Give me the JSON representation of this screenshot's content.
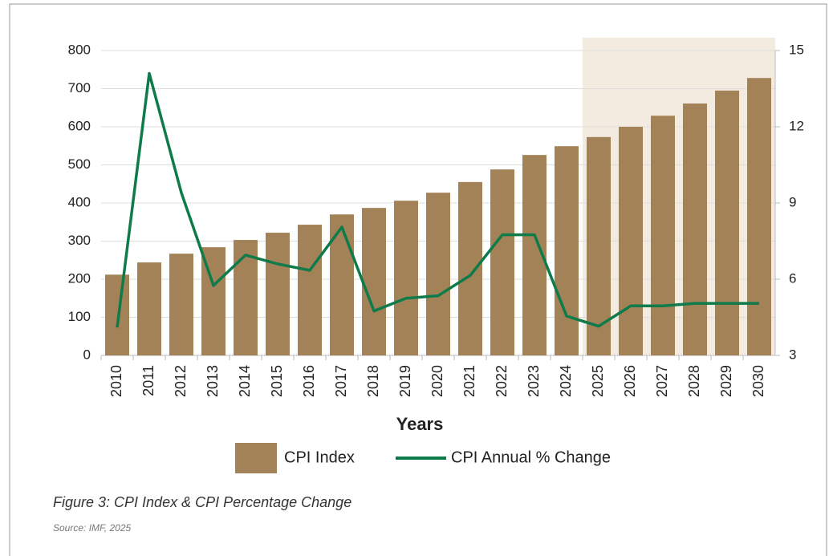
{
  "chart_data": {
    "type": "bar_line",
    "xlabel": "Years",
    "categories": [
      "2010",
      "2011",
      "2012",
      "2013",
      "2014",
      "2015",
      "2016",
      "2017",
      "2018",
      "2019",
      "2020",
      "2021",
      "2022",
      "2023",
      "2024",
      "2025",
      "2026",
      "2027",
      "2028",
      "2029",
      "2030"
    ],
    "series": [
      {
        "name": "CPI Index",
        "type": "bar",
        "color": "#a38258",
        "values": [
          212,
          244,
          267,
          284,
          303,
          322,
          343,
          370,
          387,
          406,
          427,
          455,
          488,
          526,
          549,
          573,
          600,
          629,
          661,
          695,
          728
        ]
      },
      {
        "name": "CPI Annual % Change",
        "type": "line",
        "axis": "y2",
        "color": "#0f7a4a",
        "values": [
          4.1,
          14.1,
          9.4,
          5.75,
          6.95,
          6.6,
          6.35,
          8.05,
          4.75,
          5.25,
          5.35,
          6.15,
          7.75,
          7.75,
          4.55,
          4.15,
          4.95,
          4.95,
          5.05,
          5.05,
          5.05
        ]
      }
    ],
    "ylim": [
      0,
      800
    ],
    "yticks": [
      0,
      100,
      200,
      300,
      400,
      500,
      600,
      700,
      800
    ],
    "y2lim": [
      3,
      15
    ],
    "y2ticks": [
      3,
      6,
      9,
      12,
      15
    ],
    "grid": true,
    "shaded_range": [
      "2025",
      "2030"
    ],
    "shade_color": "#f3ebe0",
    "caption": "Figure 3: CPI Index & CPI Percentage Change",
    "source": "Source: IMF, 2025"
  }
}
